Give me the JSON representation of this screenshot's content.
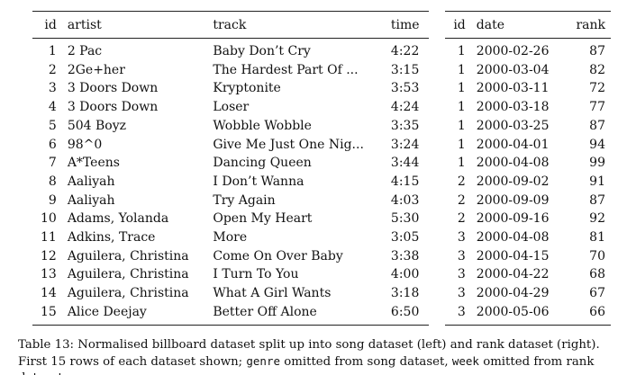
{
  "song_table": {
    "headers": [
      "id",
      "artist",
      "track",
      "time"
    ],
    "rows": [
      [
        "1",
        "2 Pac",
        "Baby Don’t Cry",
        "4:22"
      ],
      [
        "2",
        "2Ge+her",
        "The Hardest Part Of ...",
        "3:15"
      ],
      [
        "3",
        "3 Doors Down",
        "Kryptonite",
        "3:53"
      ],
      [
        "4",
        "3 Doors Down",
        "Loser",
        "4:24"
      ],
      [
        "5",
        "504 Boyz",
        "Wobble Wobble",
        "3:35"
      ],
      [
        "6",
        "98^0",
        "Give Me Just One Nig...",
        "3:24"
      ],
      [
        "7",
        "A*Teens",
        "Dancing Queen",
        "3:44"
      ],
      [
        "8",
        "Aaliyah",
        "I Don’t Wanna",
        "4:15"
      ],
      [
        "9",
        "Aaliyah",
        "Try Again",
        "4:03"
      ],
      [
        "10",
        "Adams, Yolanda",
        "Open My Heart",
        "5:30"
      ],
      [
        "11",
        "Adkins, Trace",
        "More",
        "3:05"
      ],
      [
        "12",
        "Aguilera, Christina",
        "Come On Over Baby",
        "3:38"
      ],
      [
        "13",
        "Aguilera, Christina",
        "I Turn To You",
        "4:00"
      ],
      [
        "14",
        "Aguilera, Christina",
        "What A Girl Wants",
        "3:18"
      ],
      [
        "15",
        "Alice Deejay",
        "Better Off Alone",
        "6:50"
      ]
    ]
  },
  "rank_table": {
    "headers": [
      "id",
      "date",
      "rank"
    ],
    "rows": [
      [
        "1",
        "2000-02-26",
        "87"
      ],
      [
        "1",
        "2000-03-04",
        "82"
      ],
      [
        "1",
        "2000-03-11",
        "72"
      ],
      [
        "1",
        "2000-03-18",
        "77"
      ],
      [
        "1",
        "2000-03-25",
        "87"
      ],
      [
        "1",
        "2000-04-01",
        "94"
      ],
      [
        "1",
        "2000-04-08",
        "99"
      ],
      [
        "2",
        "2000-09-02",
        "91"
      ],
      [
        "2",
        "2000-09-09",
        "87"
      ],
      [
        "2",
        "2000-09-16",
        "92"
      ],
      [
        "3",
        "2000-04-08",
        "81"
      ],
      [
        "3",
        "2000-04-15",
        "70"
      ],
      [
        "3",
        "2000-04-22",
        "68"
      ],
      [
        "3",
        "2000-04-29",
        "67"
      ],
      [
        "3",
        "2000-05-06",
        "66"
      ]
    ]
  },
  "caption": {
    "part1": "Table 13: Normalised billboard dataset split up into song dataset (left) and rank dataset (right). First 15 rows of each dataset shown; ",
    "code1": "genre",
    "part2": " omitted from song dataset, ",
    "code2": "week",
    "part3": " omitted from rank dataset."
  }
}
